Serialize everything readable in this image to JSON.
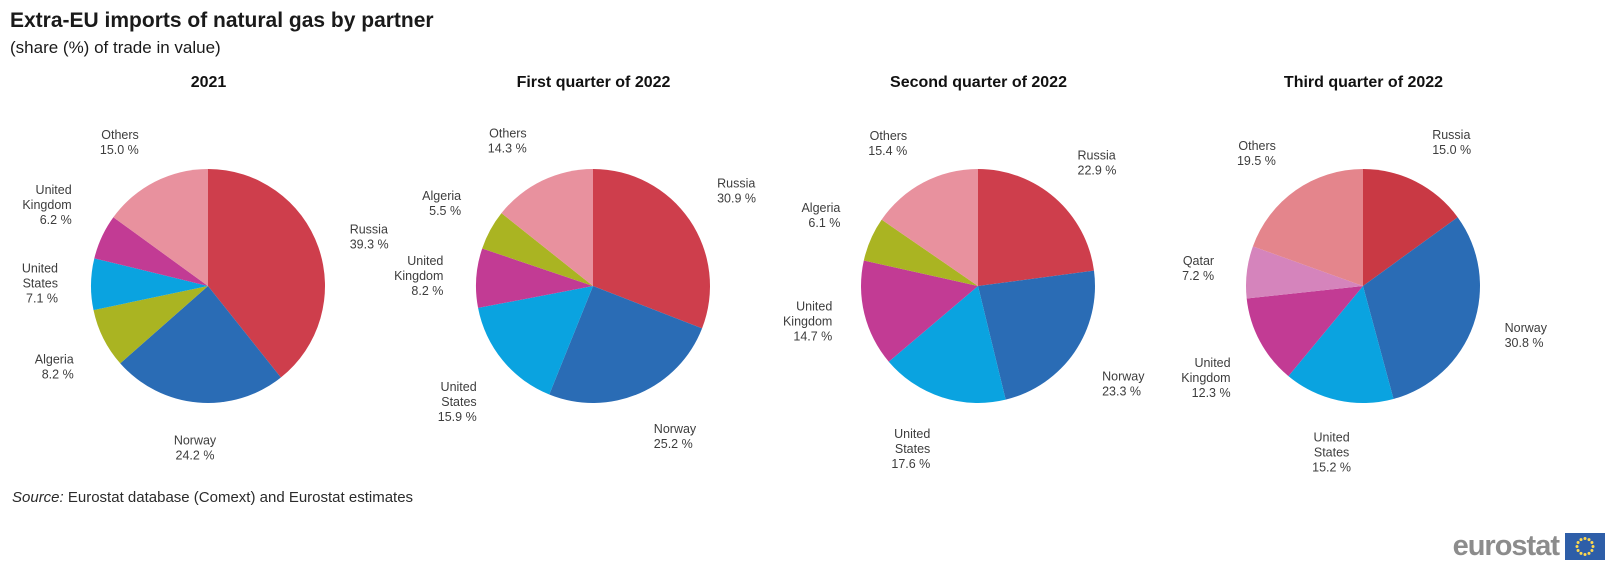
{
  "header": {
    "title": "Extra-EU imports of natural gas by partner",
    "subtitle": "(share (%) of trade in value)"
  },
  "source": {
    "label": "Source:",
    "text": "Eurostat database (Comext) and Eurostat estimates"
  },
  "logo": {
    "text": "eurostat",
    "flag_color": "#2e5ea8",
    "star_color": "#ffd94f"
  },
  "chart_data": [
    {
      "type": "pie",
      "title": "2021",
      "unit": "%",
      "labels_position": "outside",
      "slices": [
        {
          "label": "Russia",
          "value": 39.3,
          "color": "#ce3e4c"
        },
        {
          "label": "Norway",
          "value": 24.2,
          "color": "#2a6cb5"
        },
        {
          "label": "Algeria",
          "value": 8.2,
          "color": "#aab422"
        },
        {
          "label": "United States",
          "value": 7.1,
          "color": "#0aa3e0"
        },
        {
          "label": "United Kingdom",
          "value": 6.2,
          "color": "#c23b94"
        },
        {
          "label": "Others",
          "value": 15.0,
          "color": "#e8919e"
        }
      ]
    },
    {
      "type": "pie",
      "title": "First quarter of 2022",
      "unit": "%",
      "labels_position": "outside",
      "slices": [
        {
          "label": "Russia",
          "value": 30.9,
          "color": "#ce3e4c"
        },
        {
          "label": "Norway",
          "value": 25.2,
          "color": "#2a6cb5"
        },
        {
          "label": "United States",
          "value": 15.9,
          "color": "#0aa3e0"
        },
        {
          "label": "United Kingdom",
          "value": 8.2,
          "color": "#c23b94"
        },
        {
          "label": "Algeria",
          "value": 5.5,
          "color": "#aab422"
        },
        {
          "label": "Others",
          "value": 14.3,
          "color": "#e8919e"
        }
      ]
    },
    {
      "type": "pie",
      "title": "Second quarter of 2022",
      "unit": "%",
      "labels_position": "outside",
      "slices": [
        {
          "label": "Russia",
          "value": 22.9,
          "color": "#ce3e4c"
        },
        {
          "label": "Norway",
          "value": 23.3,
          "color": "#2a6cb5"
        },
        {
          "label": "United States",
          "value": 17.6,
          "color": "#0aa3e0"
        },
        {
          "label": "United Kingdom",
          "value": 14.7,
          "color": "#c23b94"
        },
        {
          "label": "Algeria",
          "value": 6.1,
          "color": "#aab422"
        },
        {
          "label": "Others",
          "value": 15.4,
          "color": "#e8919e"
        }
      ]
    },
    {
      "type": "pie",
      "title": "Third quarter of 2022",
      "unit": "%",
      "labels_position": "outside",
      "slices": [
        {
          "label": "Russia",
          "value": 15.0,
          "color": "#c93944"
        },
        {
          "label": "Norway",
          "value": 30.8,
          "color": "#2a6cb5"
        },
        {
          "label": "United States",
          "value": 15.2,
          "color": "#0aa3e0"
        },
        {
          "label": "United Kingdom",
          "value": 12.3,
          "color": "#c23b94"
        },
        {
          "label": "Qatar",
          "value": 7.2,
          "color": "#d584bc"
        },
        {
          "label": "Others",
          "value": 19.5,
          "color": "#e4858c"
        }
      ]
    }
  ]
}
